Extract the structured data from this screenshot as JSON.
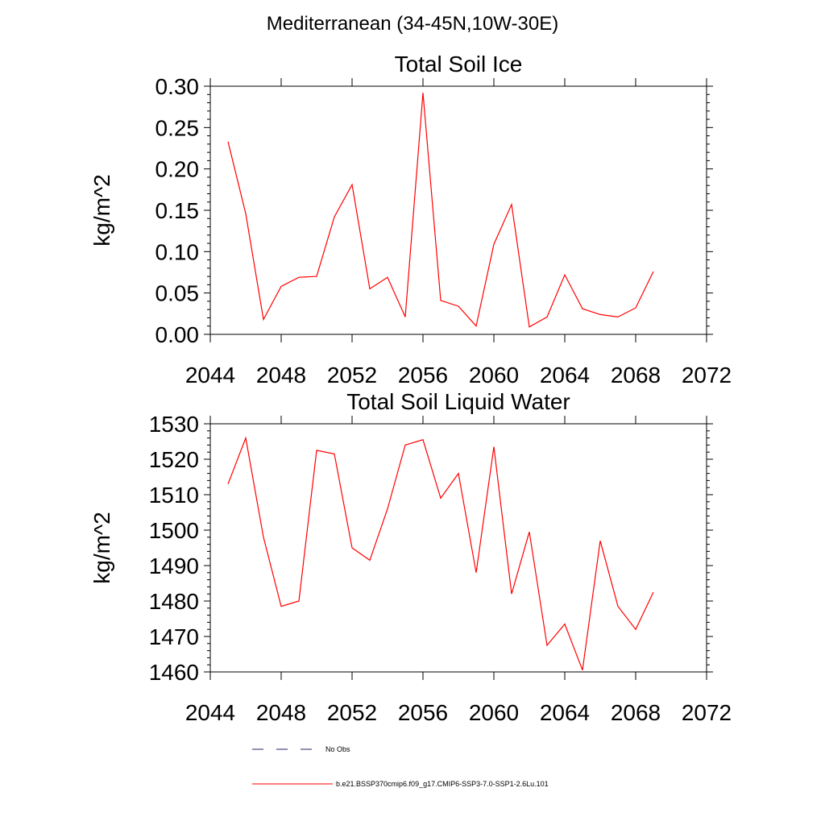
{
  "suptitle": "Mediterranean (34-45N,10W-30E)",
  "chart_data": [
    {
      "type": "line",
      "title": "Total Soil Ice",
      "xlabel": "",
      "ylabel": "kg/m^2",
      "xlim": [
        2044,
        2072
      ],
      "ylim": [
        0.0,
        0.3
      ],
      "xticks": [
        2044,
        2048,
        2052,
        2056,
        2060,
        2064,
        2068,
        2072
      ],
      "yticks": [
        0.0,
        0.05,
        0.1,
        0.15,
        0.2,
        0.25,
        0.3
      ],
      "ytick_labels": [
        "0.00",
        "0.05",
        "0.10",
        "0.15",
        "0.20",
        "0.25",
        "0.30"
      ],
      "grid": false,
      "series": [
        {
          "name": "b.e21.BSSP370cmip6.f09_g17.CMIP6-SSP3-7.0-SSP1-2.6Lu.101",
          "color": "#ff0000",
          "x": [
            2045,
            2046,
            2047,
            2048,
            2049,
            2050,
            2051,
            2052,
            2053,
            2054,
            2055,
            2056,
            2057,
            2058,
            2059,
            2060,
            2061,
            2062,
            2063,
            2064,
            2065,
            2066,
            2067,
            2068,
            2069
          ],
          "y": [
            0.233,
            0.146,
            0.018,
            0.058,
            0.069,
            0.07,
            0.142,
            0.181,
            0.055,
            0.069,
            0.021,
            0.292,
            0.041,
            0.034,
            0.01,
            0.109,
            0.157,
            0.009,
            0.021,
            0.072,
            0.031,
            0.024,
            0.021,
            0.032,
            0.076
          ]
        }
      ]
    },
    {
      "type": "line",
      "title": "Total Soil Liquid Water",
      "xlabel": "",
      "ylabel": "kg/m^2",
      "xlim": [
        2044,
        2072
      ],
      "ylim": [
        1460,
        1530
      ],
      "xticks": [
        2044,
        2048,
        2052,
        2056,
        2060,
        2064,
        2068,
        2072
      ],
      "yticks": [
        1460,
        1470,
        1480,
        1490,
        1500,
        1510,
        1520,
        1530
      ],
      "ytick_labels": [
        "1460",
        "1470",
        "1480",
        "1490",
        "1500",
        "1510",
        "1520",
        "1530"
      ],
      "grid": false,
      "series": [
        {
          "name": "b.e21.BSSP370cmip6.f09_g17.CMIP6-SSP3-7.0-SSP1-2.6Lu.101",
          "color": "#ff0000",
          "x": [
            2045,
            2046,
            2047,
            2048,
            2049,
            2050,
            2051,
            2052,
            2053,
            2054,
            2055,
            2056,
            2057,
            2058,
            2059,
            2060,
            2061,
            2062,
            2063,
            2064,
            2065,
            2066,
            2067,
            2068,
            2069
          ],
          "y": [
            1513.0,
            1526.0,
            1498.0,
            1478.5,
            1480.0,
            1522.5,
            1521.5,
            1495.0,
            1491.5,
            1506.0,
            1524.0,
            1525.5,
            1509.0,
            1516.0,
            1488.0,
            1523.5,
            1482.0,
            1499.5,
            1467.5,
            1473.5,
            1460.5,
            1497.0,
            1478.5,
            1472.0,
            1482.5
          ]
        }
      ]
    }
  ],
  "legend": {
    "placement": "bottom-center",
    "entries": [
      {
        "label": "No Obs",
        "style": "dashed",
        "color": "#202060"
      },
      {
        "label": "b.e21.BSSP370cmip6.f09_g17.CMIP6-SSP3-7.0-SSP1-2.6Lu.101",
        "style": "solid",
        "color": "#ff0000"
      }
    ]
  }
}
